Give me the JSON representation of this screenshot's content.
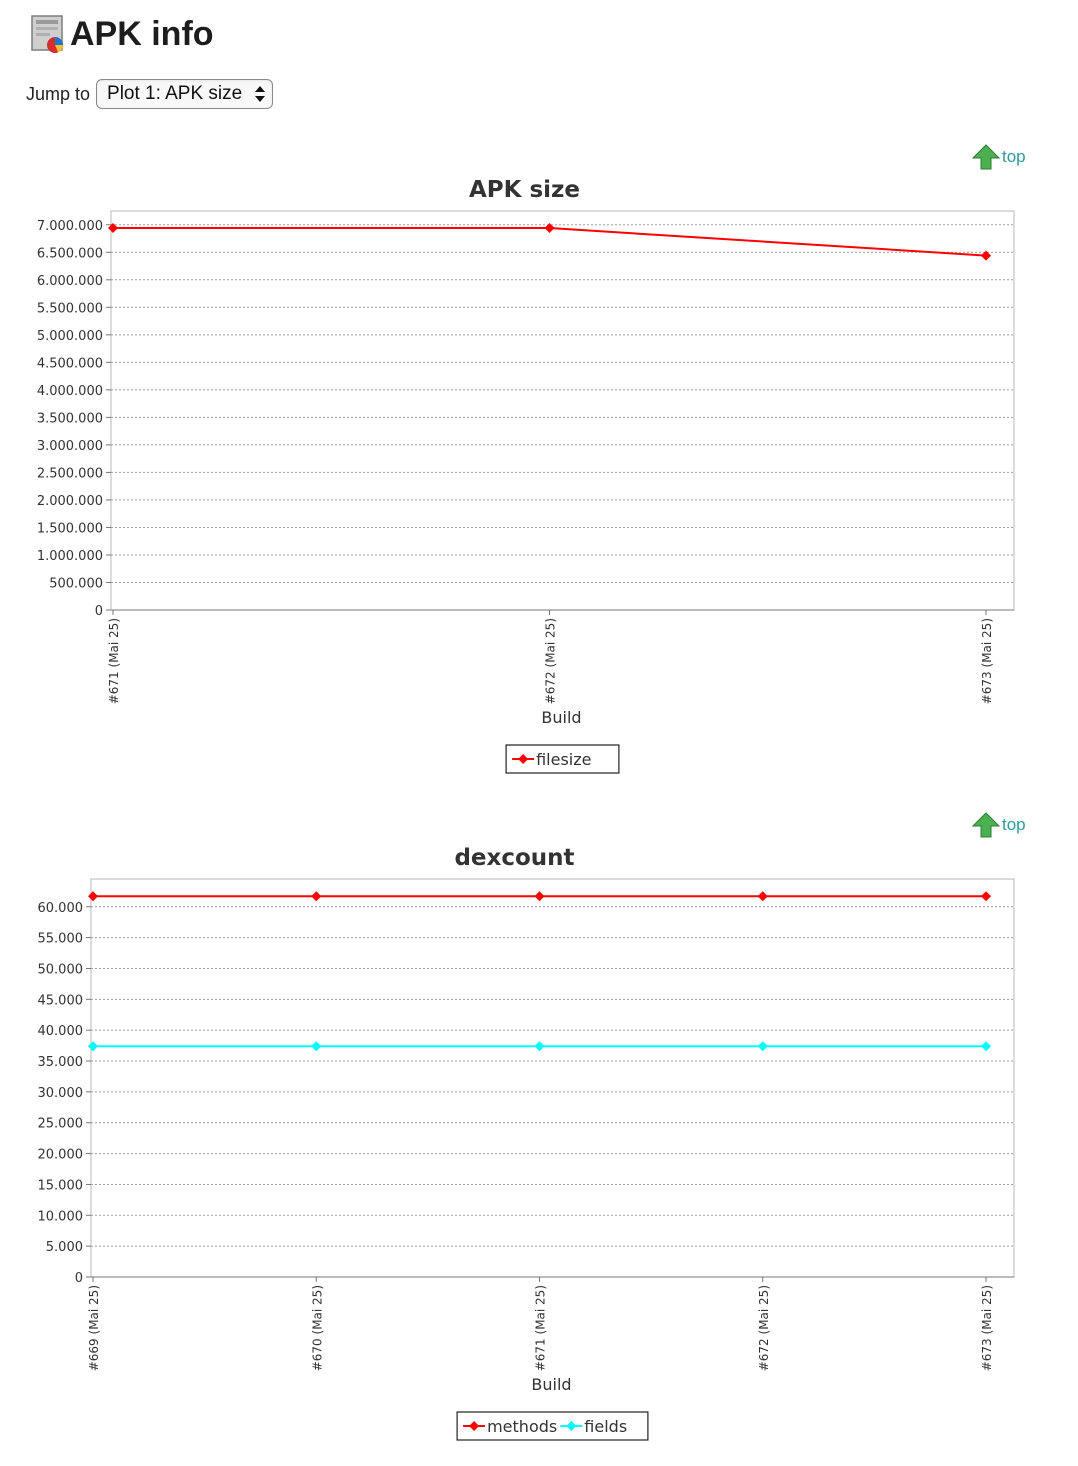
{
  "page": {
    "title": "APK info",
    "app_icon": "report-chart-icon",
    "jump_label": "Jump to",
    "jump_selected": "Plot 1: APK size",
    "top_link_label": "top",
    "colors": {
      "top_link": "#2a9d9a",
      "arrow_green": "#4caf50"
    }
  },
  "chart_data": [
    {
      "type": "line",
      "title": "APK size",
      "xlabel": "Build",
      "ylabel": "",
      "categories": [
        "#671 (Mai 25)",
        "#672 (Mai 25)",
        "#673 (Mai 25)"
      ],
      "series": [
        {
          "name": "filesize",
          "color": "#ff0000",
          "values": [
            6940000,
            6940000,
            6440000
          ]
        }
      ],
      "yticks": [
        "0",
        "500.000",
        "1.000.000",
        "1.500.000",
        "2.000.000",
        "2.500.000",
        "3.000.000",
        "3.500.000",
        "4.000.000",
        "4.500.000",
        "5.000.000",
        "5.500.000",
        "6.000.000",
        "6.500.000",
        "7.000.000"
      ],
      "ylim": [
        0,
        7250000
      ],
      "grid": true,
      "legend": "bottom-center"
    },
    {
      "type": "line",
      "title": "dexcount",
      "xlabel": "Build",
      "ylabel": "",
      "categories": [
        "#669 (Mai 25)",
        "#670 (Mai 25)",
        "#671 (Mai 25)",
        "#672 (Mai 25)",
        "#673 (Mai 25)"
      ],
      "series": [
        {
          "name": "methods",
          "color": "#ff0000",
          "values": [
            61700,
            61700,
            61700,
            61700,
            61700
          ]
        },
        {
          "name": "fields",
          "color": "#00ffff",
          "values": [
            37400,
            37400,
            37400,
            37400,
            37400
          ]
        }
      ],
      "yticks": [
        "0",
        "5.000",
        "10.000",
        "15.000",
        "20.000",
        "25.000",
        "30.000",
        "35.000",
        "40.000",
        "45.000",
        "50.000",
        "55.000",
        "60.000"
      ],
      "ylim": [
        0,
        64500
      ],
      "grid": true,
      "legend": "bottom-center"
    }
  ]
}
